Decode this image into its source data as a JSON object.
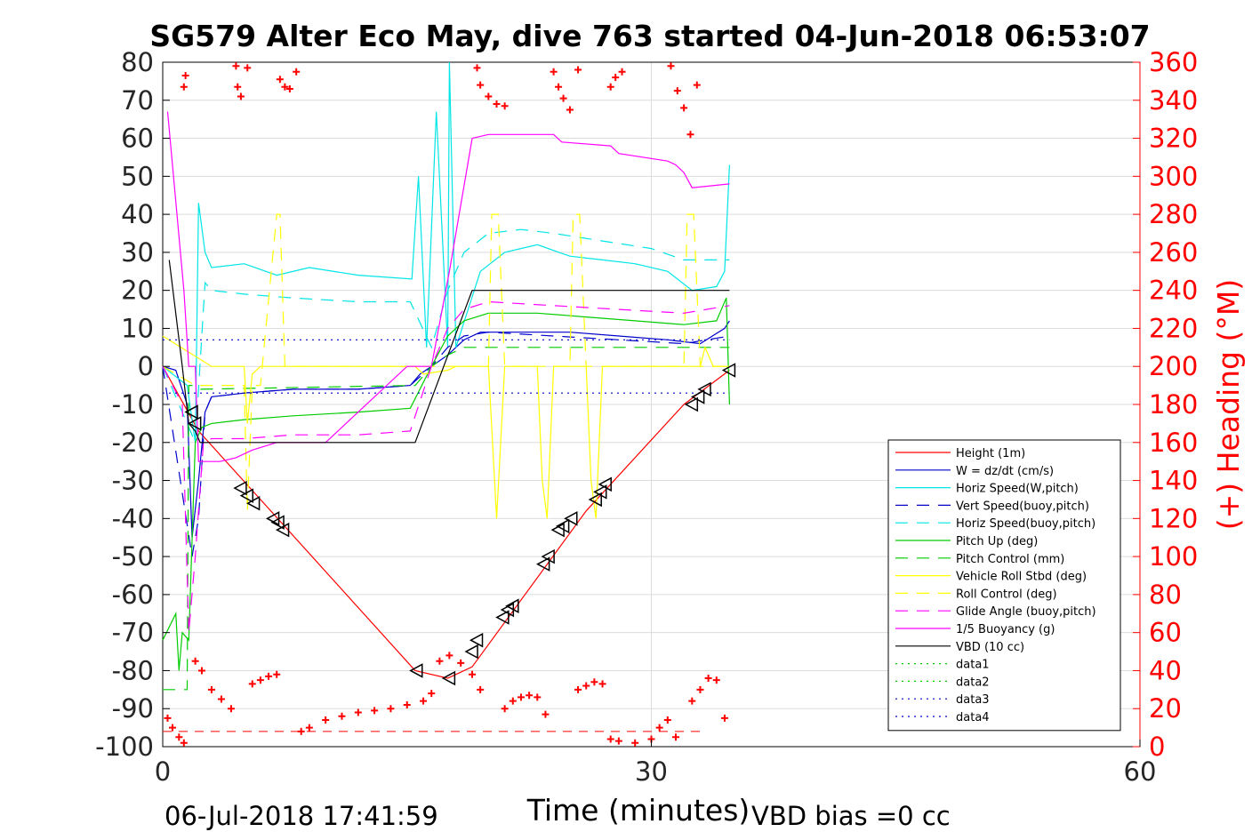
{
  "chart_data": {
    "type": "line",
    "title": "SG579 Alter Eco May, dive 763 started 04-Jun-2018 06:53:07",
    "xlabel": "Time (minutes)",
    "ylabel_right": "(+) Heading (°M)",
    "xlim": [
      0,
      60
    ],
    "ylim": [
      -100,
      80
    ],
    "ylim_right": [
      0,
      360
    ],
    "x_ticks": [
      "0",
      "30",
      "60"
    ],
    "y_ticks": [
      "80",
      "70",
      "60",
      "50",
      "40",
      "30",
      "20",
      "10",
      "0",
      "-10",
      "-20",
      "-30",
      "-40",
      "-50",
      "-60",
      "-70",
      "-80",
      "-90",
      "-100"
    ],
    "y_ticks_right": [
      "360",
      "340",
      "320",
      "300",
      "280",
      "260",
      "240",
      "220",
      "200",
      "180",
      "160",
      "140",
      "120",
      "100",
      "80",
      "60",
      "40",
      "20",
      "0"
    ],
    "grid": true,
    "legend_position": "bottom-right",
    "footer_left": "06-Jul-2018 17:41:59",
    "footer_right": "VBD bias =0 cc",
    "colors": {
      "axis": "#000000",
      "grid": "#dcdcdc",
      "right_axis": "#ff0000",
      "heading": "#ff0000"
    },
    "series": [
      {
        "name": "Height (1m)",
        "color": "#ff0000",
        "dash": "",
        "x": [
          0,
          2.2,
          15.5,
          17.5,
          19,
          26,
          32,
          34.8
        ],
        "y": [
          0,
          -17,
          -80,
          -82,
          -79,
          -38,
          -10,
          -1
        ]
      },
      {
        "name": "W = dz/dt (cm/s)",
        "color": "#0000cc",
        "dash": "",
        "x": [
          0,
          0.8,
          1.5,
          1.8,
          2.2,
          2.6,
          3,
          5,
          8,
          12,
          15.2,
          15.8,
          16.5,
          17.5,
          18.5,
          19.5,
          22,
          25,
          28,
          31,
          33,
          34.5,
          34.8
        ],
        "y": [
          0,
          -1,
          -10,
          -45,
          -30,
          -12,
          -8,
          -7,
          -6,
          -6,
          -5,
          -2,
          0,
          3,
          7,
          9,
          9,
          9,
          8,
          7,
          6,
          10,
          12
        ]
      },
      {
        "name": "Horiz Speed(W,pitch)",
        "color": "#00e5e5",
        "dash": "",
        "x": [
          0,
          1.5,
          2,
          2.2,
          2.6,
          3,
          5,
          7,
          9,
          12,
          15.3,
          15.7,
          16.2,
          16.8,
          17.5,
          17.6,
          18,
          19.5,
          21,
          23,
          25,
          27,
          29,
          31,
          32.5,
          34,
          34.5,
          34.8
        ],
        "y": [
          0,
          -5,
          -20,
          43,
          30,
          26,
          27,
          24,
          26,
          24,
          23,
          50,
          5,
          67,
          5,
          80,
          5,
          25,
          30,
          32,
          29,
          28,
          27,
          25,
          20,
          21,
          25,
          53
        ]
      },
      {
        "name": "Vert Speed(buoy,pitch)",
        "color": "#0000cc",
        "dash": "14,10",
        "x": [
          0,
          1.8,
          2.2,
          2.6,
          3,
          5,
          8,
          12,
          15.2,
          16.5,
          17.5,
          18.5,
          20,
          24,
          28,
          32,
          34.8
        ],
        "y": [
          0,
          -50,
          -40,
          -12,
          -8,
          -7,
          -6,
          -6,
          -5,
          0,
          5,
          8,
          9,
          8,
          7,
          6,
          8
        ]
      },
      {
        "name": "Horiz Speed(buoy,pitch)",
        "color": "#00e5e5",
        "dash": "14,10",
        "x": [
          0,
          2,
          2.6,
          3,
          5,
          8,
          12,
          15.2,
          16.5,
          17.5,
          18.5,
          20,
          22,
          24,
          27,
          30,
          32,
          34.8
        ],
        "y": [
          0,
          -20,
          22,
          20,
          19,
          18,
          17,
          17,
          5,
          20,
          30,
          35,
          36,
          35,
          33,
          31,
          28,
          28
        ]
      },
      {
        "name": "Pitch Up (deg)",
        "color": "#00cc00",
        "dash": "",
        "x": [
          0,
          0.8,
          1,
          1.2,
          1.6,
          2,
          2.4,
          3,
          5,
          8,
          12,
          15.2,
          16.5,
          17.5,
          18.5,
          20,
          23,
          26,
          29,
          32,
          34,
          34.6,
          34.8
        ],
        "y": [
          -72,
          -65,
          -80,
          -70,
          -72,
          -20,
          -16,
          -15,
          -14,
          -13,
          -12,
          -11,
          0,
          8,
          12,
          14,
          14,
          13,
          12,
          11,
          12,
          18,
          -10
        ]
      },
      {
        "name": "Pitch Control (mm)",
        "color": "#00cc00",
        "dash": "14,10",
        "x": [
          0,
          1.5,
          1.6,
          1.8,
          2.2,
          15.5,
          16.5,
          17.5,
          18.5,
          34.8
        ],
        "y": [
          -85,
          -85,
          -5,
          -5,
          -6,
          -5,
          0,
          3,
          5,
          5
        ]
      },
      {
        "name": "Vehicle Roll Stbd (deg)",
        "color": "#ffff00",
        "dash": "",
        "x": [
          0,
          3,
          5,
          5.2,
          5.5,
          6,
          15.5,
          16,
          17.5,
          18,
          20,
          20.5,
          21,
          23,
          23.3,
          23.6,
          24,
          26,
          26.3,
          26.6,
          27,
          30,
          33,
          33.3,
          33.8,
          34.8
        ],
        "y": [
          8,
          0,
          0,
          -15,
          -2,
          0,
          0,
          -2,
          -1,
          0,
          0,
          -40,
          0,
          0,
          -30,
          -40,
          0,
          0,
          -30,
          -40,
          0,
          0,
          0,
          5,
          0,
          0
        ]
      },
      {
        "name": "Roll Control (deg)",
        "color": "#ffff00",
        "dash": "14,10",
        "x": [
          0,
          2,
          5,
          5.2,
          5.5,
          6,
          7,
          7.2,
          7.5,
          8,
          20,
          20.2,
          20.6,
          21,
          25,
          25.2,
          25.6,
          26,
          32,
          32.2,
          32.6,
          33,
          34.8
        ],
        "y": [
          0,
          -5,
          -5,
          -38,
          -5,
          -5,
          40,
          40,
          0,
          0,
          0,
          40,
          40,
          0,
          0,
          40,
          40,
          0,
          0,
          40,
          40,
          0,
          0
        ]
      },
      {
        "name": "Glide Angle (buoy,pitch)",
        "color": "#ff00ff",
        "dash": "14,10",
        "x": [
          0,
          1.2,
          1.6,
          2,
          2.5,
          3,
          5,
          8,
          12,
          15.2,
          16.5,
          17.5,
          18.5,
          20,
          24,
          28,
          32,
          34.8
        ],
        "y": [
          0,
          -10,
          -70,
          -50,
          -20,
          -19,
          -19,
          -18,
          -18,
          -17,
          0,
          10,
          15,
          17,
          16,
          15,
          14,
          16
        ]
      },
      {
        "name": "1/5 Buoyancy (g)",
        "color": "#ff00ff",
        "dash": "",
        "x": [
          0.3,
          1.3,
          1.6,
          2,
          2.2,
          3.5,
          4.5,
          5.5,
          7,
          10,
          15,
          16.5,
          17.6,
          19,
          20,
          24,
          24.5,
          27.5,
          28,
          31,
          31.5,
          32,
          32.5,
          34.8
        ],
        "y": [
          67,
          20,
          0,
          0,
          -25,
          -25,
          -24,
          -22,
          -20,
          -20,
          0,
          0,
          25,
          60,
          61,
          61,
          59,
          58,
          56,
          54,
          53,
          51,
          47,
          48
        ]
      },
      {
        "name": "VBD (10 cc)",
        "color": "#000000",
        "dash": "",
        "x": [
          0.4,
          1.2,
          1.6,
          2,
          2.3,
          15.5,
          19,
          34.8
        ],
        "y": [
          28,
          0,
          -15,
          -17,
          -20,
          -20,
          20,
          20
        ]
      },
      {
        "name": "data1",
        "color": "#00cc00",
        "dash": "2,5",
        "x": [],
        "y": []
      },
      {
        "name": "data2",
        "color": "#00cc00",
        "dash": "2,5",
        "x": [],
        "y": []
      },
      {
        "name": "data3",
        "color": "#0000cc",
        "dash": "2,5",
        "x": [
          0,
          34.8
        ],
        "y": [
          7,
          7
        ]
      },
      {
        "name": "data4",
        "color": "#0000cc",
        "dash": "2,5",
        "x": [
          0,
          34.8
        ],
        "y": [
          -7,
          -7
        ]
      }
    ],
    "heading_points": {
      "name": "(+) Heading (°M)",
      "color": "#ff0000",
      "x": [
        1.3,
        1.4,
        4.5,
        4.6,
        4.8,
        5.2,
        7.2,
        7.5,
        7.8,
        8.2,
        19.3,
        19.5,
        20,
        20.5,
        21,
        24,
        24.3,
        24.6,
        25,
        25.5,
        27.5,
        27.8,
        28.2,
        31.2,
        31.6,
        32,
        32.4,
        32.8,
        0.3,
        0.6,
        1,
        1.3,
        2,
        2.4,
        3,
        3.6,
        4.2,
        5.5,
        6,
        6.5,
        7,
        8.5,
        9,
        10,
        11,
        12,
        13,
        14,
        15,
        16,
        16.5,
        17,
        17.6,
        18.3,
        19,
        19.5,
        21,
        21.5,
        22,
        22.5,
        23,
        23.5,
        25.5,
        26,
        26.5,
        27,
        27.5,
        28,
        29,
        30,
        30.5,
        31,
        31.5,
        32.5,
        33,
        33.5,
        34,
        34.5
      ],
      "y": [
        347,
        353,
        358,
        347,
        342,
        357,
        351,
        347,
        346,
        355,
        357,
        348,
        342,
        338,
        337,
        355,
        347,
        341,
        335,
        356,
        347,
        352,
        355,
        358,
        345,
        336,
        322,
        348,
        15,
        10,
        5,
        2,
        45,
        40,
        30,
        25,
        20,
        33,
        35,
        37,
        38,
        8,
        10,
        14,
        16,
        18,
        19,
        20,
        22,
        24,
        28,
        45,
        48,
        44,
        38,
        30,
        20,
        24,
        26,
        27,
        26,
        17,
        30,
        32,
        34,
        33,
        4,
        3,
        2,
        4,
        10,
        14,
        5,
        24,
        30,
        36,
        35,
        15
      ]
    },
    "triangle_markers": {
      "color": "#000000",
      "x": [
        1.8,
        2,
        4.8,
        5.2,
        5.6,
        6.8,
        7.1,
        7.4,
        15.6,
        17.6,
        19,
        19.3,
        20.9,
        21.2,
        21.5,
        23.4,
        23.7,
        24.3,
        24.6,
        25.1,
        26.6,
        26.9,
        27.2,
        32.5,
        32.9,
        33.3,
        34.8
      ],
      "y": [
        -12,
        -15,
        -32,
        -34,
        -36,
        -40,
        -41,
        -43,
        -80,
        -82,
        -75,
        -72,
        -66,
        -64,
        -63,
        -52,
        -50,
        -43,
        -42,
        -40,
        -35,
        -33,
        -31,
        -10,
        -8,
        -6,
        -1
      ]
    },
    "extra_lines": [
      {
        "color": "#ff0000",
        "dash": "10,8",
        "x": [
          0,
          33
        ],
        "y": [
          -96,
          -96
        ]
      }
    ]
  }
}
